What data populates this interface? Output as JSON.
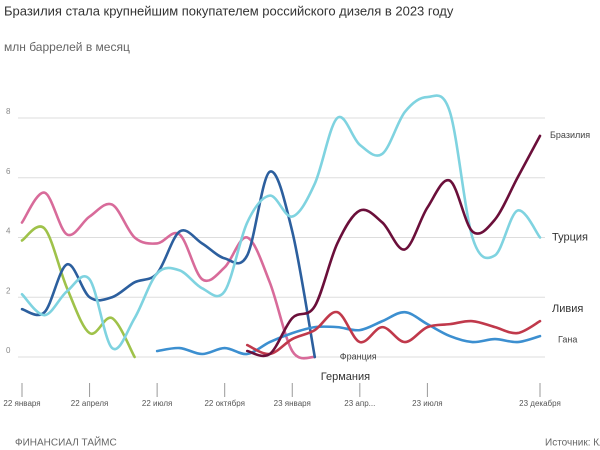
{
  "chart_data": {
    "type": "line",
    "title": "Бразилия стала крупнейшим покупателем российского дизеля в 2023 году",
    "subtitle": "млн баррелей в месяц",
    "categories": [
      "22 января",
      null,
      null,
      "22 апреля",
      null,
      null,
      "22 июля",
      null,
      null,
      "22 октября",
      null,
      null,
      "23 января",
      null,
      null,
      "23 апр...",
      null,
      null,
      "23 июля",
      null,
      null,
      null,
      null,
      "23 декабря"
    ],
    "ylim": [
      0,
      8.5
    ],
    "yticks": [
      0,
      2,
      4,
      6,
      8
    ],
    "grid": true,
    "series": [
      {
        "name": "Бразилия",
        "color": "#6b0f3a",
        "values": [
          null,
          null,
          null,
          null,
          null,
          null,
          null,
          null,
          null,
          null,
          0.2,
          0.1,
          1.3,
          1.7,
          3.8,
          4.9,
          4.5,
          3.6,
          5.0,
          5.9,
          4.2,
          4.6,
          6.0,
          7.4
        ]
      },
      {
        "name": "Турция",
        "color": "#7fd3e0",
        "values": [
          2.1,
          1.4,
          2.2,
          2.6,
          0.3,
          1.3,
          2.8,
          2.9,
          2.3,
          2.2,
          4.5,
          5.4,
          4.7,
          5.8,
          8.0,
          7.1,
          6.8,
          8.2,
          8.7,
          8.2,
          4.0,
          3.4,
          4.9,
          4.0
        ]
      },
      {
        "name": "Ливия",
        "color": "#c0394b",
        "values": [
          null,
          null,
          null,
          null,
          null,
          null,
          null,
          null,
          null,
          null,
          0.4,
          0.1,
          0.6,
          0.9,
          1.5,
          0.5,
          1.0,
          0.5,
          1.0,
          1.1,
          1.2,
          1.0,
          0.8,
          1.2
        ]
      },
      {
        "name": "Гана",
        "color": "#3c8fd0",
        "values": [
          null,
          null,
          null,
          null,
          null,
          null,
          0.2,
          0.3,
          0.1,
          0.3,
          0.1,
          0.5,
          0.8,
          1.0,
          1.0,
          0.9,
          1.2,
          1.5,
          1.1,
          0.7,
          0.5,
          0.6,
          0.5,
          0.7
        ]
      },
      {
        "name": "Франция",
        "color": "#d86b9a",
        "values": [
          4.5,
          5.5,
          4.1,
          4.7,
          5.1,
          4.0,
          3.8,
          4.1,
          2.6,
          3.0,
          4.0,
          2.5,
          0.2,
          0.0,
          null,
          null,
          null,
          null,
          null,
          null,
          null,
          null,
          null,
          null
        ]
      },
      {
        "name": "Германия",
        "color": "#2c5f9e",
        "values": [
          1.6,
          1.5,
          3.1,
          2.0,
          2.0,
          2.5,
          2.8,
          4.2,
          3.8,
          3.3,
          3.4,
          6.2,
          4.2,
          0.0,
          null,
          null,
          null,
          null,
          null,
          null,
          null,
          null,
          null,
          null
        ]
      },
      {
        "color": "#9fc24a",
        "values": [
          3.9,
          4.3,
          2.3,
          0.8,
          1.3,
          0.0,
          null,
          null,
          null,
          null,
          null,
          null,
          null,
          null,
          null,
          null,
          null,
          null,
          null,
          null,
          null,
          null,
          null,
          null
        ]
      }
    ]
  },
  "footer": {
    "brand": "ФИНАНСИАЛ ТАЙМС",
    "source": "Источник: Клле"
  }
}
